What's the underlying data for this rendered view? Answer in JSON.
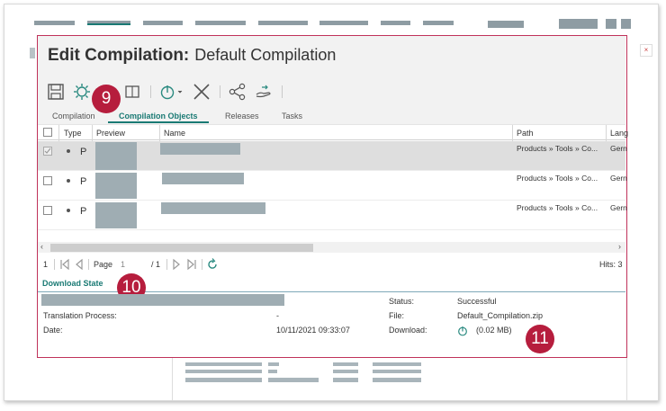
{
  "dialog": {
    "title_bold": "Edit Compilation:",
    "title_name": "Default Compilation"
  },
  "toolbar": {
    "icons": [
      "save-icon",
      "settings-icon",
      "export-icon",
      "clock-dropdown-icon",
      "close-icon",
      "share-icon",
      "handover-icon"
    ]
  },
  "callouts": {
    "toolbar": "9",
    "download_state": "10",
    "download": "11"
  },
  "tabs": [
    "Compilation",
    "Compilation Objects",
    "Releases",
    "Tasks"
  ],
  "active_tab": "Compilation Objects",
  "table": {
    "headers": {
      "type": "Type",
      "preview": "Preview",
      "name": "Name",
      "path": "Path",
      "language": "Lang"
    },
    "rows": [
      {
        "checked": true,
        "type": "P",
        "path": "Products » Tools » Co...",
        "language": "Gern"
      },
      {
        "checked": false,
        "type": "P",
        "path": "Products » Tools » Co...",
        "language": "Gern"
      },
      {
        "checked": false,
        "type": "P",
        "path": "Products » Tools » Co...",
        "language": "Gern"
      }
    ]
  },
  "pager": {
    "left_count": "1",
    "page_label": "Page",
    "page_value": "1",
    "page_total": "/ 1",
    "hits": "Hits: 3"
  },
  "download_state": {
    "title": "Download State",
    "translation_label": "Translation Process:",
    "translation_value": "-",
    "date_label": "Date:",
    "date_value": "10/11/2021 09:33:07",
    "status_label": "Status:",
    "status_value": "Successful",
    "file_label": "File:",
    "file_value": "Default_Compilation.zip",
    "download_label": "Download:",
    "download_value": "(0.02 MB)"
  },
  "colors": {
    "accent": "#1a7a74",
    "border": "#c0325a",
    "badge": "#b61d3d"
  }
}
